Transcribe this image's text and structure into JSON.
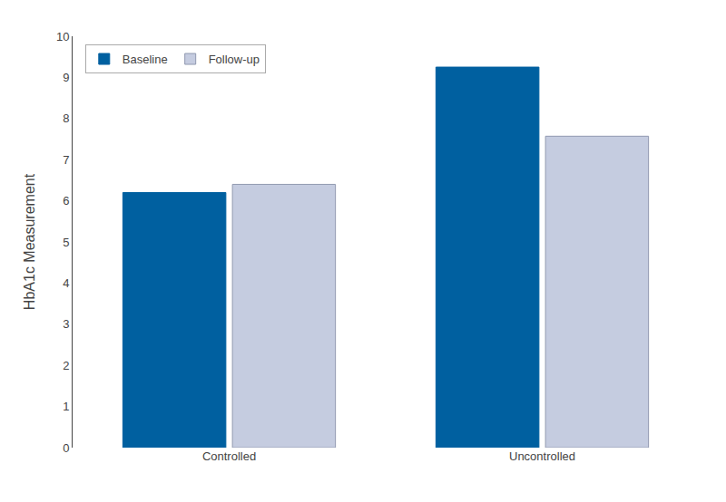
{
  "chart_data": {
    "type": "bar",
    "categories": [
      "Controlled",
      "Uncontrolled"
    ],
    "series": [
      {
        "name": "Baseline",
        "color": "#0060A0",
        "values": [
          6.2,
          9.25
        ]
      },
      {
        "name": "Follow-up",
        "color": "#C5CCE0",
        "values": [
          6.4,
          7.57
        ]
      }
    ],
    "ylabel": "HbA1c Measurement",
    "ylim": [
      0,
      10
    ],
    "yticks": [
      0,
      1,
      2,
      3,
      4,
      5,
      6,
      7,
      8,
      9,
      10
    ],
    "grid": false,
    "legend": "upper left"
  }
}
